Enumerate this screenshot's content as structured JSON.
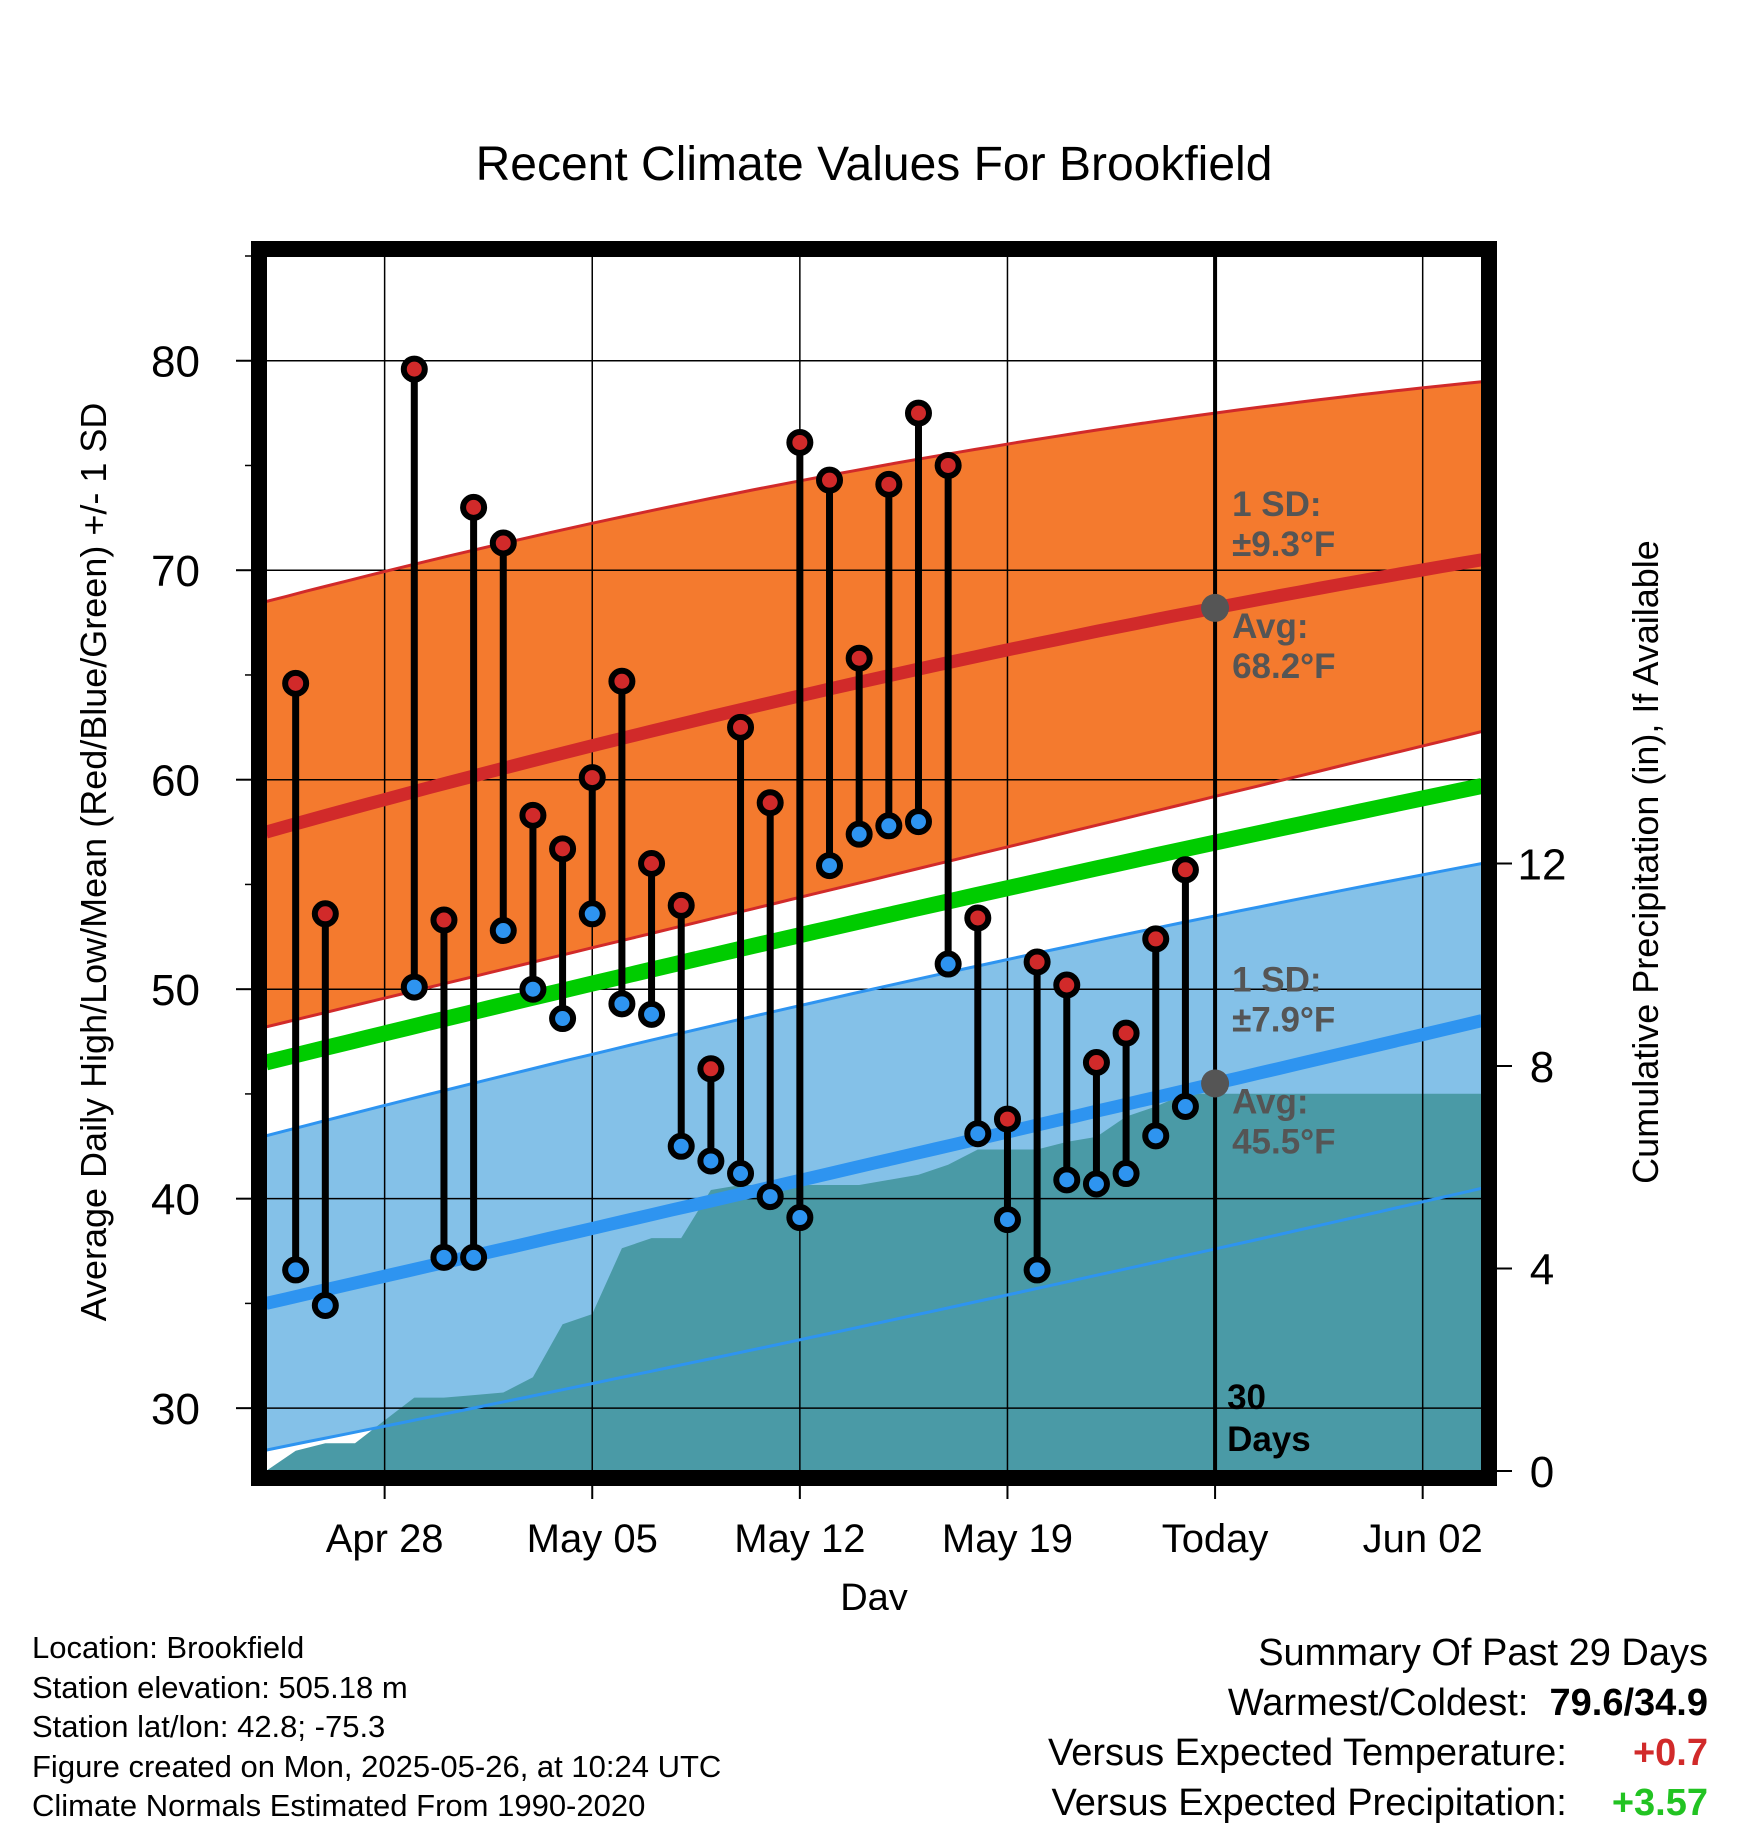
{
  "chart_data": {
    "type": "line",
    "title": "Recent Climate Values For Brookfield",
    "xlabel": "Day",
    "ylabel": "Average Daily High/Low/Mean (Red/Blue/Green) +/- 1 SD",
    "y2label": "Cumulative Precipitation (in), If Available",
    "ylim": [
      27,
      85
    ],
    "y2lim": [
      0,
      24
    ],
    "yticks": [
      30,
      40,
      50,
      60,
      70,
      80
    ],
    "y2ticks": [
      0,
      4,
      8,
      12
    ],
    "xlim": [
      "2025-04-24",
      "2025-06-04"
    ],
    "xticks": [
      {
        "date": "2025-04-28",
        "label": "Apr 28"
      },
      {
        "date": "2025-05-05",
        "label": "May 05"
      },
      {
        "date": "2025-05-12",
        "label": "May 12"
      },
      {
        "date": "2025-05-19",
        "label": "May 19"
      },
      {
        "date": "2025-05-26",
        "label": "Today"
      },
      {
        "date": "2025-06-02",
        "label": "Jun 02"
      }
    ],
    "today_label": [
      "30",
      "Days"
    ],
    "colors": {
      "high_band": "#f47a2e",
      "high_mean": "#d12a2a",
      "low_band": "#84c1e8",
      "low_mean": "#2e94f0",
      "mean": "#00cc00",
      "precip": "#4a9aa6",
      "high_point": "#d12a2a",
      "low_point": "#2e94f0"
    },
    "normals": {
      "dates": [
        "2025-04-24",
        "2025-05-26",
        "2025-06-04"
      ],
      "high_mean": [
        57.5,
        68.2,
        70.5
      ],
      "high_upper": [
        68.5,
        77.5,
        79.0
      ],
      "high_lower": [
        48.2,
        59.2,
        62.3
      ],
      "low_mean": [
        35.0,
        45.5,
        48.5
      ],
      "low_upper": [
        43.0,
        53.5,
        56.0
      ],
      "low_lower": [
        28.0,
        37.6,
        40.5
      ],
      "mean": [
        46.5,
        57.0,
        59.7
      ]
    },
    "high_annotation": {
      "date": "2025-05-26",
      "value": 68.2,
      "sd_line1": "1 SD:",
      "sd_line2": "±9.3°F",
      "avg_line1": "Avg:",
      "avg_line2": "68.2°F"
    },
    "low_annotation": {
      "date": "2025-05-26",
      "value": 45.5,
      "sd_line1": "1 SD:",
      "sd_line2": "±7.9°F",
      "avg_line1": "Avg:",
      "avg_line2": "45.5°F"
    },
    "observations": [
      {
        "date": "2025-04-25",
        "high": 64.6,
        "low": 36.6
      },
      {
        "date": "2025-04-26",
        "high": 53.6,
        "low": 34.9
      },
      {
        "date": "2025-04-29",
        "high": 79.6,
        "low": 50.1
      },
      {
        "date": "2025-04-30",
        "high": 53.3,
        "low": 37.2
      },
      {
        "date": "2025-05-01",
        "high": 73.0,
        "low": 37.2
      },
      {
        "date": "2025-05-02",
        "high": 71.3,
        "low": 52.8
      },
      {
        "date": "2025-05-03",
        "high": 58.3,
        "low": 50.0
      },
      {
        "date": "2025-05-04",
        "high": 56.7,
        "low": 48.6
      },
      {
        "date": "2025-05-05",
        "high": 60.1,
        "low": 53.6
      },
      {
        "date": "2025-05-06",
        "high": 64.7,
        "low": 49.3
      },
      {
        "date": "2025-05-07",
        "high": 56.0,
        "low": 48.8
      },
      {
        "date": "2025-05-08",
        "high": 54.0,
        "low": 42.5
      },
      {
        "date": "2025-05-09",
        "high": 46.2,
        "low": 41.8
      },
      {
        "date": "2025-05-10",
        "high": 62.5,
        "low": 41.2
      },
      {
        "date": "2025-05-11",
        "high": 58.9,
        "low": 40.1
      },
      {
        "date": "2025-05-12",
        "high": 76.1,
        "low": 39.1
      },
      {
        "date": "2025-05-13",
        "high": 74.3,
        "low": 55.9
      },
      {
        "date": "2025-05-14",
        "high": 65.8,
        "low": 57.4
      },
      {
        "date": "2025-05-15",
        "high": 74.1,
        "low": 57.8
      },
      {
        "date": "2025-05-16",
        "high": 77.5,
        "low": 58.0
      },
      {
        "date": "2025-05-17",
        "high": 75.0,
        "low": 51.2
      },
      {
        "date": "2025-05-18",
        "high": 53.4,
        "low": 43.1
      },
      {
        "date": "2025-05-19",
        "high": 43.8,
        "low": 39.0
      },
      {
        "date": "2025-05-20",
        "high": 51.3,
        "low": 36.6
      },
      {
        "date": "2025-05-21",
        "high": 50.2,
        "low": 40.9
      },
      {
        "date": "2025-05-22",
        "high": 46.5,
        "low": 40.7
      },
      {
        "date": "2025-05-23",
        "high": 47.9,
        "low": 41.2
      },
      {
        "date": "2025-05-24",
        "high": 52.4,
        "low": 43.0
      },
      {
        "date": "2025-05-25",
        "high": 55.7,
        "low": 44.4
      }
    ],
    "precipitation": {
      "dates": [
        "2025-04-24",
        "2025-04-25",
        "2025-04-26",
        "2025-04-27",
        "2025-04-28",
        "2025-04-29",
        "2025-04-30",
        "2025-05-01",
        "2025-05-02",
        "2025-05-03",
        "2025-05-04",
        "2025-05-05",
        "2025-05-06",
        "2025-05-07",
        "2025-05-08",
        "2025-05-09",
        "2025-05-10",
        "2025-05-11",
        "2025-05-12",
        "2025-05-13",
        "2025-05-14",
        "2025-05-15",
        "2025-05-16",
        "2025-05-17",
        "2025-05-18",
        "2025-05-19",
        "2025-05-20",
        "2025-05-21",
        "2025-05-22",
        "2025-05-23",
        "2025-05-24",
        "2025-05-25",
        "2025-05-26",
        "2025-06-04"
      ],
      "cumulative": [
        0.0,
        0.4,
        0.55,
        0.55,
        1.0,
        1.45,
        1.45,
        1.5,
        1.55,
        1.85,
        2.9,
        3.1,
        4.4,
        4.6,
        4.6,
        5.55,
        5.65,
        5.65,
        5.65,
        5.65,
        5.65,
        5.75,
        5.85,
        6.05,
        6.35,
        6.35,
        6.35,
        6.5,
        6.6,
        7.0,
        7.2,
        7.45,
        7.45,
        7.45
      ]
    }
  },
  "info": {
    "location": "Location: Brookfield",
    "elevation": "Station elevation: 505.18 m",
    "latlon": "Station lat/lon: 42.8; -75.3",
    "created": "Figure created on Mon, 2025-05-26, at 10:24 UTC",
    "normals": "Climate Normals Estimated From 1990-2020"
  },
  "summary": {
    "title": "Summary Of Past 29 Days",
    "warmest_label": "Warmest/Coldest:",
    "warmest_value": "79.6/34.9",
    "temp_label": "Versus Expected Temperature:",
    "temp_value": "+0.7",
    "temp_color": "#d12a2a",
    "precip_label": "Versus Expected Precipitation:",
    "precip_value": "+3.57",
    "precip_color": "#22c322"
  }
}
